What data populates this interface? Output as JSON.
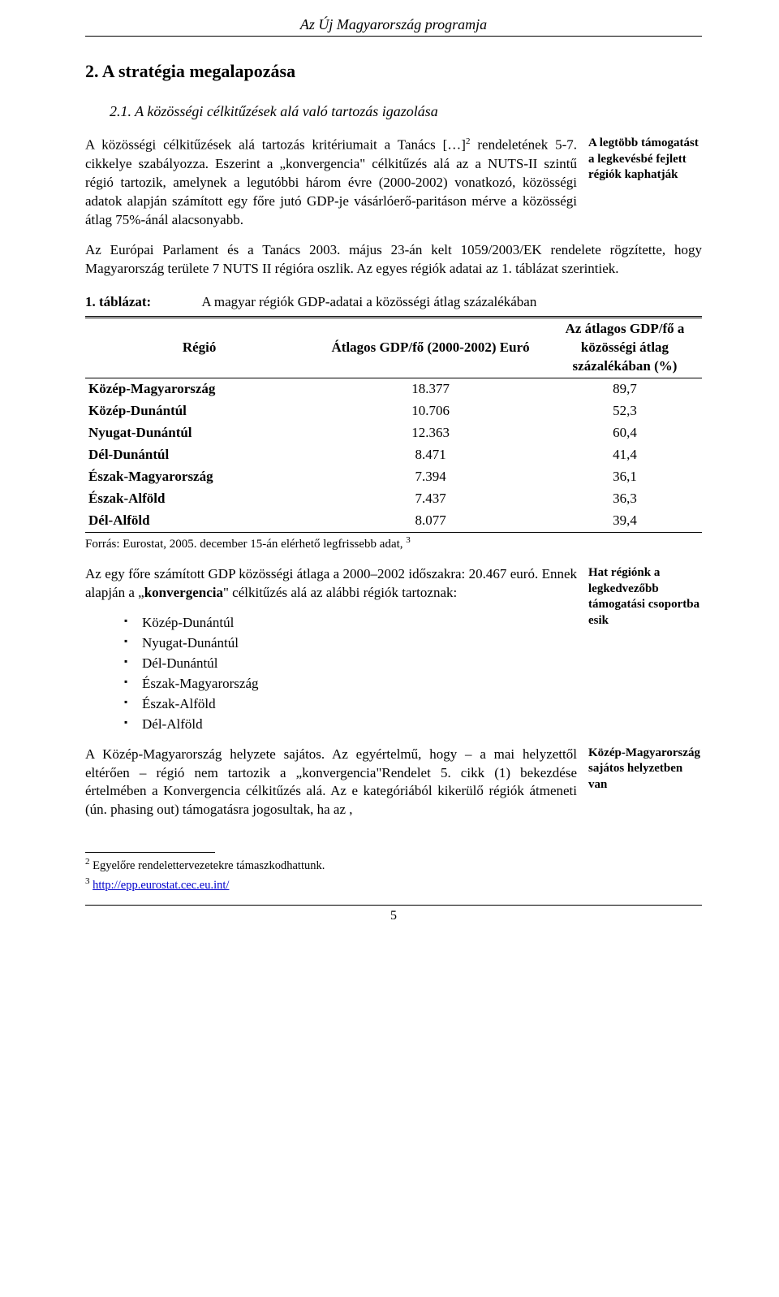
{
  "header": {
    "title": "Az Új Magyarország programja"
  },
  "h1": "2. A stratégia megalapozása",
  "h2": "2.1. A közösségi célkitűzések alá való tartozás igazolása",
  "block1": {
    "side_note": "A legtöbb támogatást a legkevésbé fejlett régiók kaphatják",
    "p1_a": "A közösségi célkitűzések alá tartozás kritériumait a Tanács […]",
    "p1_b": " rendeletének 5-7. cikkelye szabályozza. Eszerint a „konvergencia\" célkitűzés alá az a NUTS-II szintű régió tartozik, amelynek a legutóbbi három évre (2000-2002) vonatkozó, közösségi adatok alapján számított egy főre jutó GDP-je vásárlóerő-paritáson mérve a közösségi átlag 75%-ánál alacsonyabb.",
    "sup2": "2"
  },
  "block2": {
    "p": "Az Európai Parlament és a Tanács 2003. május 23-án kelt 1059/2003/EK rendelete rögzítette, hogy Magyarország területe 7 NUTS II régióra oszlik. Az egyes régiók adatai az 1. táblázat szerintiek."
  },
  "table": {
    "label": "1. táblázat:",
    "caption": "A magyar régiók GDP-adatai a közösségi átlag százalékában",
    "col_region": "Régió",
    "col_gdp": "Átlagos GDP/fő (2000-2002) Euró",
    "col_pct": "Az átlagos GDP/fő a közösségi átlag százalékában (%)",
    "rows": [
      {
        "region": "Közép-Magyarország",
        "gdp": "18.377",
        "pct": "89,7"
      },
      {
        "region": "Közép-Dunántúl",
        "gdp": "10.706",
        "pct": "52,3"
      },
      {
        "region": "Nyugat-Dunántúl",
        "gdp": "12.363",
        "pct": "60,4"
      },
      {
        "region": "Dél-Dunántúl",
        "gdp": "8.471",
        "pct": "41,4"
      },
      {
        "region": "Észak-Magyarország",
        "gdp": "7.394",
        "pct": "36,1"
      },
      {
        "region": "Észak-Alföld",
        "gdp": "7.437",
        "pct": "36,3"
      },
      {
        "region": "Dél-Alföld",
        "gdp": "8.077",
        "pct": "39,4"
      }
    ],
    "source_a": "Forrás: Eurostat, 2005. december 15-án elérhető legfrissebb adat, ",
    "source_sup": "3"
  },
  "block3": {
    "side_note": "Hat régiónk a legkedvezőbb támogatási csoportba esik",
    "p_a": "Az egy főre számított GDP közösségi átlaga a 2000–2002 időszakra: 20.467 euró. Ennek alapján a „",
    "p_b_bold": "konvergencia",
    "p_c": "\" célkitűzés alá az alábbi régiók tartoznak:",
    "list": [
      "Közép-Dunántúl",
      "Nyugat-Dunántúl",
      "Dél-Dunántúl",
      "Észak-Magyarország",
      "Észak-Alföld",
      "Dél-Alföld"
    ]
  },
  "block4": {
    "side_note": "Közép-Magyarország sajátos helyzetben van",
    "p": "A Közép-Magyarország helyzete sajátos. Az egyértelmű, hogy – a mai helyzettől eltérően – régió nem tartozik a „konvergencia\"Rendelet 5. cikk (1) bekezdése értelmében a Konvergencia célkitűzés alá. Az e kategóriából kikerülő régiók átmeneti (ún. phasing out) támogatásra jogosultak, ha az ,"
  },
  "footnotes": {
    "fn2_sup": "2",
    "fn2_text": " Egyelőre rendelettervezetekre támaszkodhattunk.",
    "fn3_sup": "3",
    "fn3_text": " ",
    "fn3_link": "http://epp.eurostat.cec.eu.int/"
  },
  "page_number": "5"
}
